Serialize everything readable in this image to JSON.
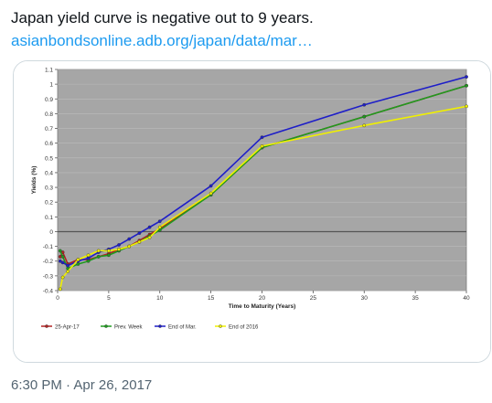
{
  "tweet": {
    "text": "Japan yield curve is negative out to 9 years.",
    "link": "asianbondsonline.adb.org/japan/data/mar…",
    "timestamp": "6:30 PM · Apr 26, 2017"
  },
  "chart_data": {
    "type": "line",
    "title": "",
    "xlabel": "Time to Maturity (Years)",
    "ylabel": "Yields (%)",
    "xlim": [
      0,
      40
    ],
    "ylim": [
      -0.4,
      1.1
    ],
    "x_ticks": [
      0,
      5,
      10,
      15,
      20,
      25,
      30,
      35,
      40
    ],
    "y_ticks": [
      1.1,
      1,
      0.9,
      0.8,
      0.7,
      0.6,
      0.5,
      0.4,
      0.3,
      0.2,
      0.1,
      0,
      -0.1,
      -0.2,
      -0.3,
      -0.4
    ],
    "y_tick_labels": [
      "1.1",
      "1",
      "0.9",
      "0.8",
      "0.7",
      "0.6",
      "0.5",
      "0.4",
      "0.3",
      "0.2",
      "0.1",
      "0",
      "-0.1",
      "-0.2",
      "-0.3",
      "-0.4"
    ],
    "grid": "horizontal",
    "legend_position": "bottom",
    "background": "#a6a6a6",
    "zero_line_color": "#555555",
    "series": [
      {
        "name": "25-Apr-17",
        "color": "#b22222",
        "x": [
          0.25,
          0.5,
          1,
          2,
          3,
          4,
          5,
          6,
          7,
          8,
          9,
          10,
          15,
          20,
          30,
          40
        ],
        "y": [
          -0.17,
          -0.14,
          -0.22,
          -0.19,
          -0.19,
          -0.17,
          -0.15,
          -0.12,
          -0.1,
          -0.06,
          -0.02,
          0.02,
          0.25,
          0.57,
          0.78,
          0.99
        ]
      },
      {
        "name": "Prev. Week",
        "color": "#1e9b1e",
        "x": [
          0.25,
          0.5,
          1,
          2,
          3,
          4,
          5,
          6,
          7,
          8,
          9,
          10,
          15,
          20,
          30,
          40
        ],
        "y": [
          -0.13,
          -0.17,
          -0.25,
          -0.22,
          -0.2,
          -0.17,
          -0.16,
          -0.13,
          -0.1,
          -0.07,
          -0.03,
          0.01,
          0.25,
          0.57,
          0.78,
          0.99
        ]
      },
      {
        "name": "End of Mar.",
        "color": "#1e1ec8",
        "x": [
          0.25,
          0.5,
          1,
          2,
          3,
          4,
          5,
          6,
          7,
          8,
          9,
          10,
          15,
          20,
          30,
          40
        ],
        "y": [
          -0.2,
          -0.21,
          -0.23,
          -0.2,
          -0.18,
          -0.14,
          -0.12,
          -0.09,
          -0.05,
          -0.01,
          0.03,
          0.07,
          0.31,
          0.64,
          0.86,
          1.05
        ]
      },
      {
        "name": "End of 2016",
        "color": "#f0f000",
        "x": [
          0.25,
          0.5,
          1,
          2,
          3,
          4,
          5,
          6,
          7,
          8,
          9,
          10,
          15,
          20,
          30,
          40
        ],
        "y": [
          -0.39,
          -0.31,
          -0.27,
          -0.19,
          -0.16,
          -0.13,
          -0.13,
          -0.12,
          -0.1,
          -0.07,
          -0.04,
          0.03,
          0.26,
          0.58,
          0.72,
          0.85
        ]
      }
    ]
  }
}
